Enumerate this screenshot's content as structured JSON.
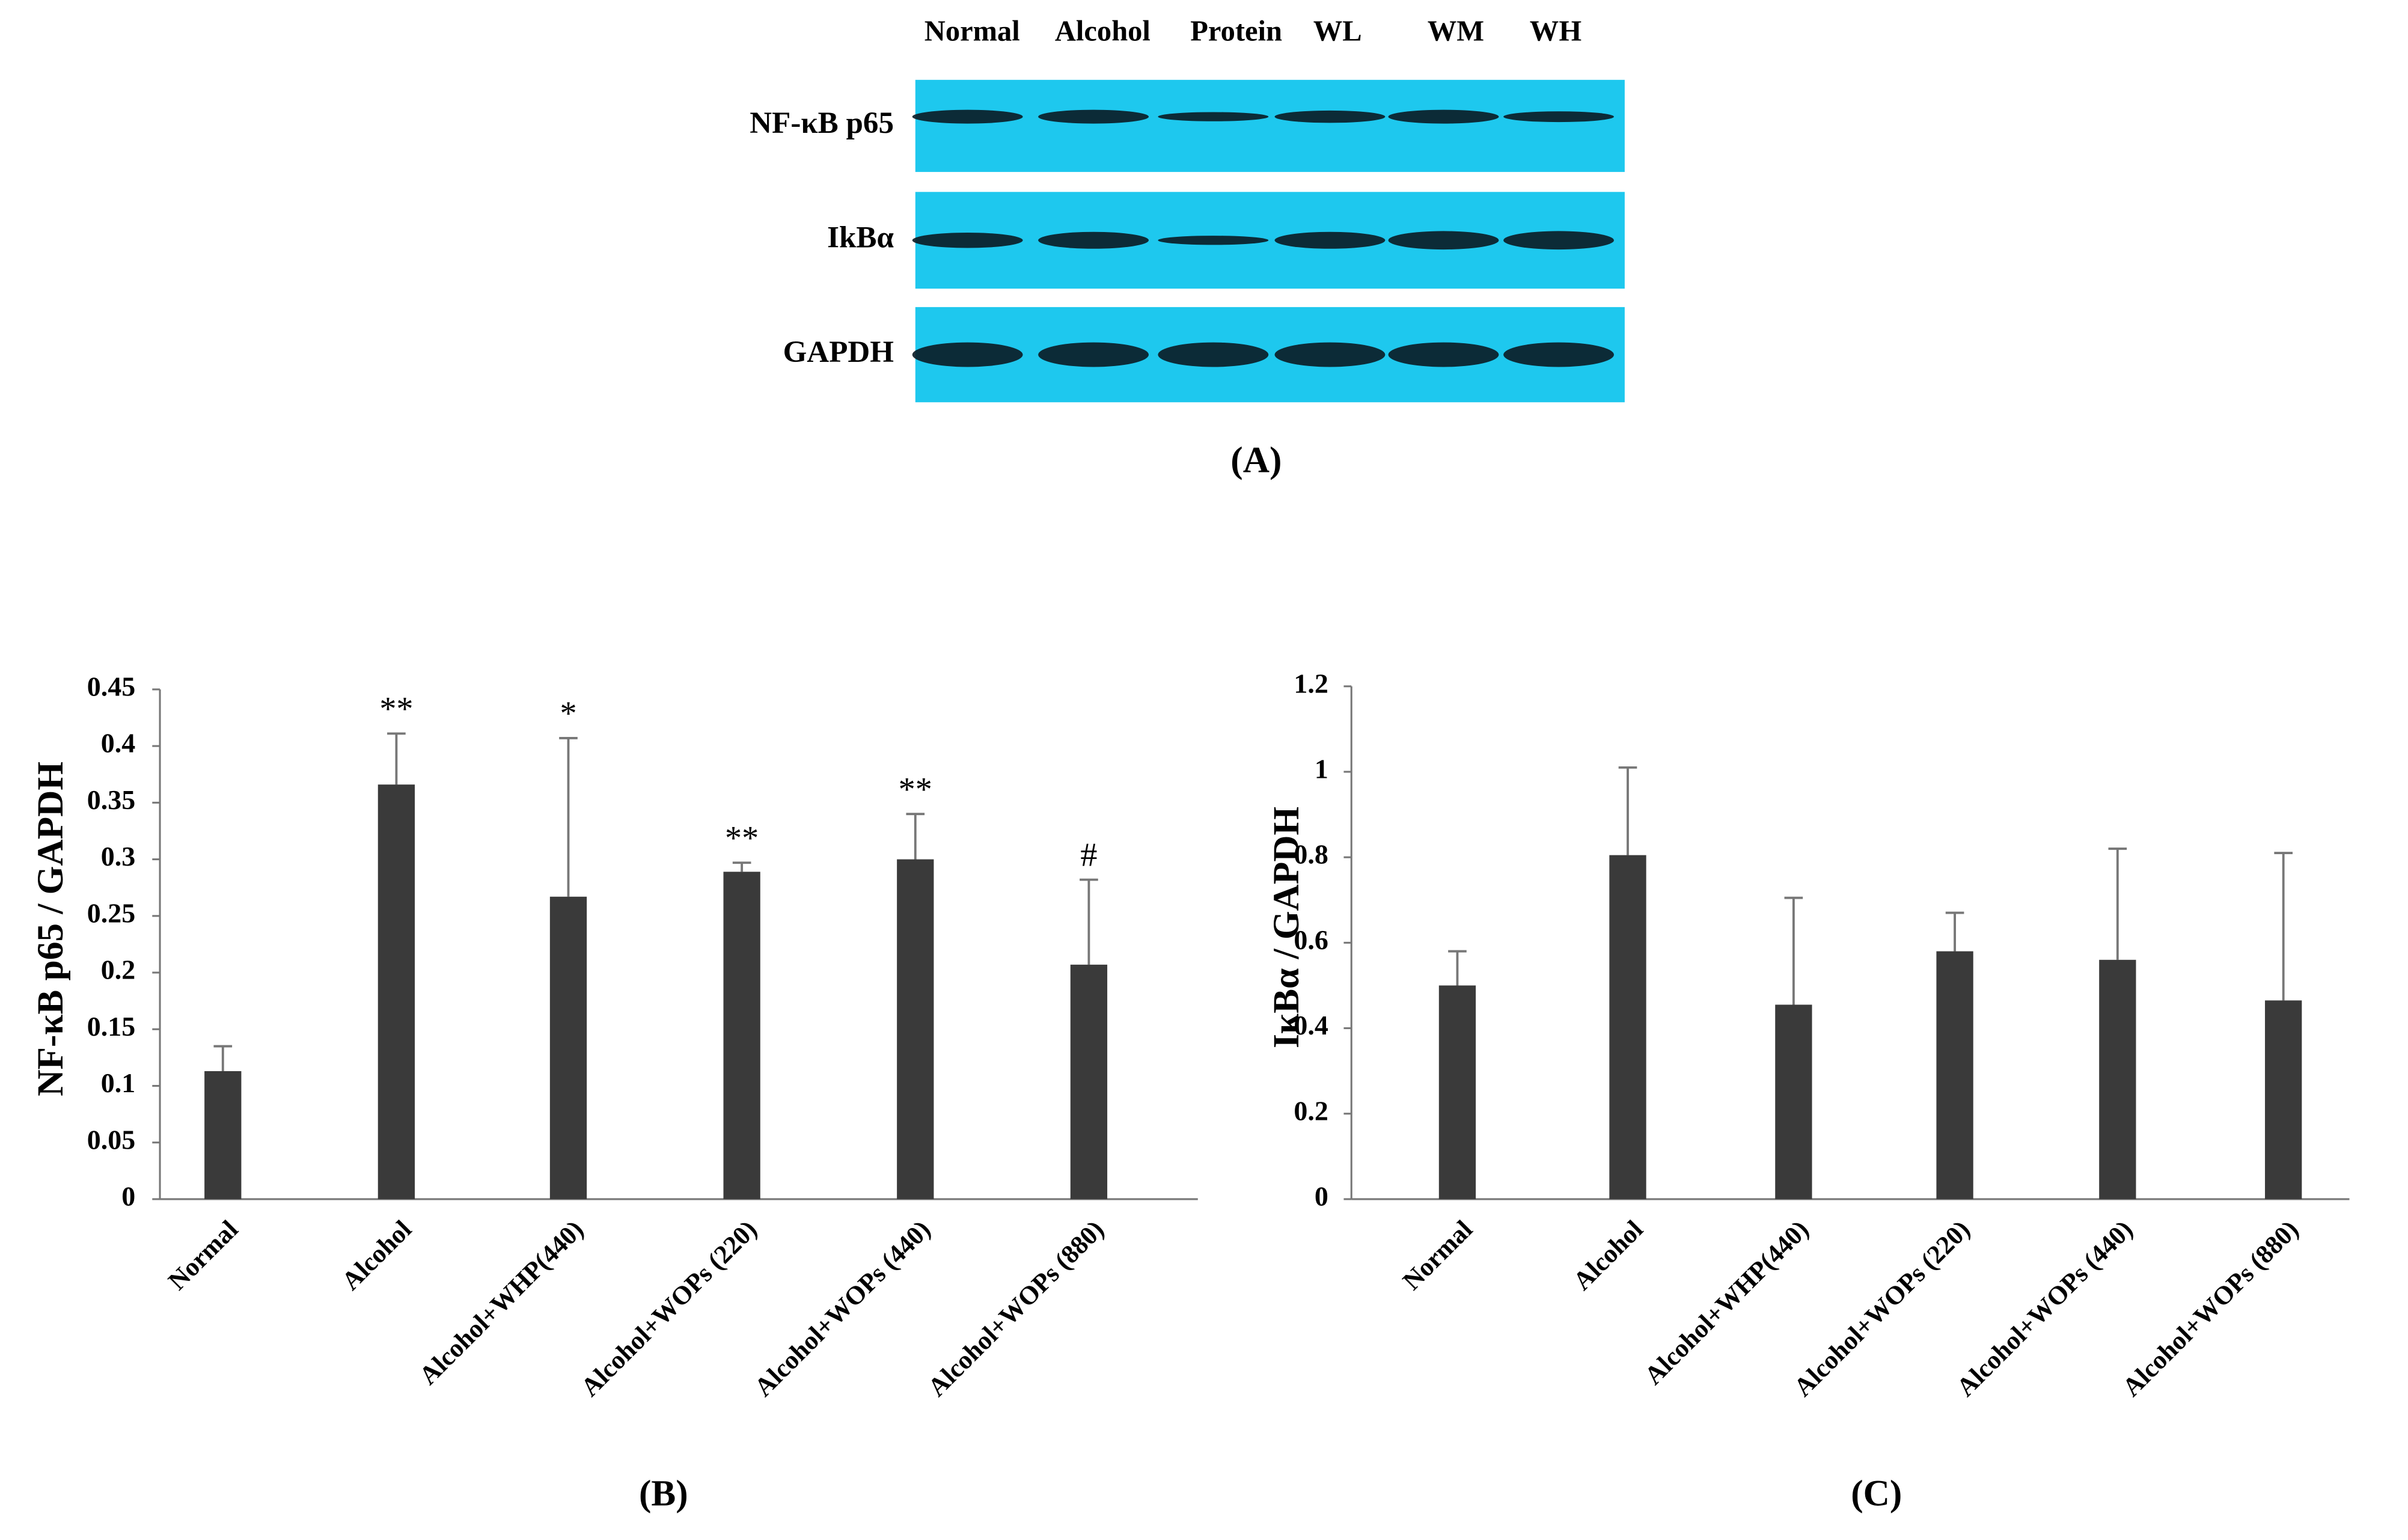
{
  "blot": {
    "lanes": [
      "Normal",
      "Alcohol",
      "Protein",
      "WL",
      "WM",
      "WH"
    ],
    "rows": [
      "NF-κB p65",
      "IkBα",
      "GAPDH"
    ],
    "panel_label": "(A)"
  },
  "chart_data": [
    {
      "type": "bar",
      "panel_label": "(B)",
      "y_label": "NF-κB p65 / GAPDH",
      "categories": [
        "Normal",
        "Alcohol",
        "Alcohol+WHP(440)",
        "Alcohol+WOPs (220)",
        "Alcohol+WOPs (440)",
        "Alcohol+WOPs (880)"
      ],
      "values": [
        0.113,
        0.366,
        0.267,
        0.289,
        0.3,
        0.207
      ],
      "errors": [
        0.022,
        0.045,
        0.14,
        0.008,
        0.04,
        0.075
      ],
      "annotations": [
        null,
        "**",
        "*",
        "**",
        "**",
        "#"
      ],
      "color": "#3a3a3a",
      "ylim": [
        0,
        0.45
      ],
      "yticks": [
        0,
        0.05,
        0.1,
        0.15,
        0.2,
        0.25,
        0.3,
        0.35,
        0.4,
        0.45
      ]
    },
    {
      "type": "bar",
      "panel_label": "(C)",
      "y_label": "IκBα / GAPDH",
      "categories": [
        "Normal",
        "Alcohol",
        "Alcohol+WHP(440)",
        "Alcohol+WOPs (220)",
        "Alcohol+WOPs (440)",
        "Alcohol+WOPs (880)"
      ],
      "values": [
        0.5,
        0.805,
        0.455,
        0.58,
        0.56,
        0.465
      ],
      "errors": [
        0.08,
        0.205,
        0.25,
        0.09,
        0.26,
        0.345
      ],
      "color": "#3a3a3a",
      "ylim": [
        0,
        1.2
      ],
      "yticks": [
        0,
        0.2,
        0.4,
        0.6,
        0.8,
        1,
        1.2
      ]
    }
  ]
}
